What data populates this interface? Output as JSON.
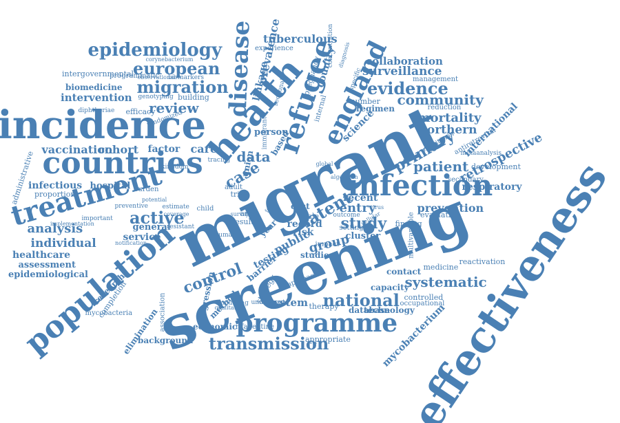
{
  "colors": {
    "word": "#4a80b4",
    "background": "#ffffff"
  },
  "words": [
    "effectiveness",
    "screening",
    "migrant",
    "incidence",
    "countries",
    "population",
    "treatment",
    "infection",
    "health",
    "refugee",
    "england",
    "disease",
    "epidemiology",
    "european",
    "migration",
    "evidence",
    "community",
    "surveillance",
    "collaboration",
    "tuberculous",
    "prevalence",
    "programme",
    "transmission",
    "national",
    "systematic",
    "study",
    "active",
    "latent",
    "patient",
    "primary",
    "retrospective",
    "international",
    "mortality",
    "northern",
    "prevention",
    "respiratory",
    "entry",
    "group",
    "record",
    "public",
    "control",
    "review",
    "intervention",
    "biomedicine",
    "vaccination",
    "cohort",
    "factor",
    "care",
    "data",
    "case",
    "infectious",
    "hospital",
    "analysis",
    "individual",
    "healthcare",
    "assessment",
    "epidemiological",
    "proportion",
    "administrative",
    "service",
    "general",
    "research",
    "completion",
    "mycobacteria",
    "elimination",
    "background",
    "economic",
    "contact",
    "capacity",
    "system",
    "therapy",
    "database",
    "technology",
    "mycobacterium",
    "controlled",
    "medicine",
    "reactivation",
    "cluster",
    "testing",
    "risk",
    "cost",
    "recent",
    "finding",
    "evaluation",
    "development",
    "antiretroviral",
    "secondary",
    "country",
    "linkage",
    "pregnancy",
    "regimen",
    "number",
    "efficacy",
    "building",
    "intergovernmental",
    "reduction",
    "management",
    "experience",
    "science",
    "person",
    "based",
    "union",
    "year",
    "studies",
    "impact",
    "barrier",
    "method",
    "strategy",
    "regression",
    "association",
    "rifapentine",
    "appropriate",
    "occupational",
    "multivariable",
    "underwent",
    "evaluating",
    "qualitative",
    "randomized",
    "programmatic",
    "observational",
    "biomarkers",
    "corynebacterium",
    "genotyping",
    "diphtheriae",
    "setting",
    "outcome",
    "important",
    "implementation",
    "approach",
    "result",
    "area",
    "trial",
    "adult",
    "child",
    "resistant",
    "estimate",
    "internal",
    "wale",
    "immigrant",
    "metaanalysis",
    "practitioner",
    "sectional",
    "concentration",
    "diagnosis",
    "specific",
    "preventive",
    "coverage",
    "burden",
    "kingdom",
    "tracing",
    "surveys",
    "human",
    "follow",
    "virus",
    "cellular",
    "notification",
    "potential",
    "algorithm",
    "global"
  ]
}
